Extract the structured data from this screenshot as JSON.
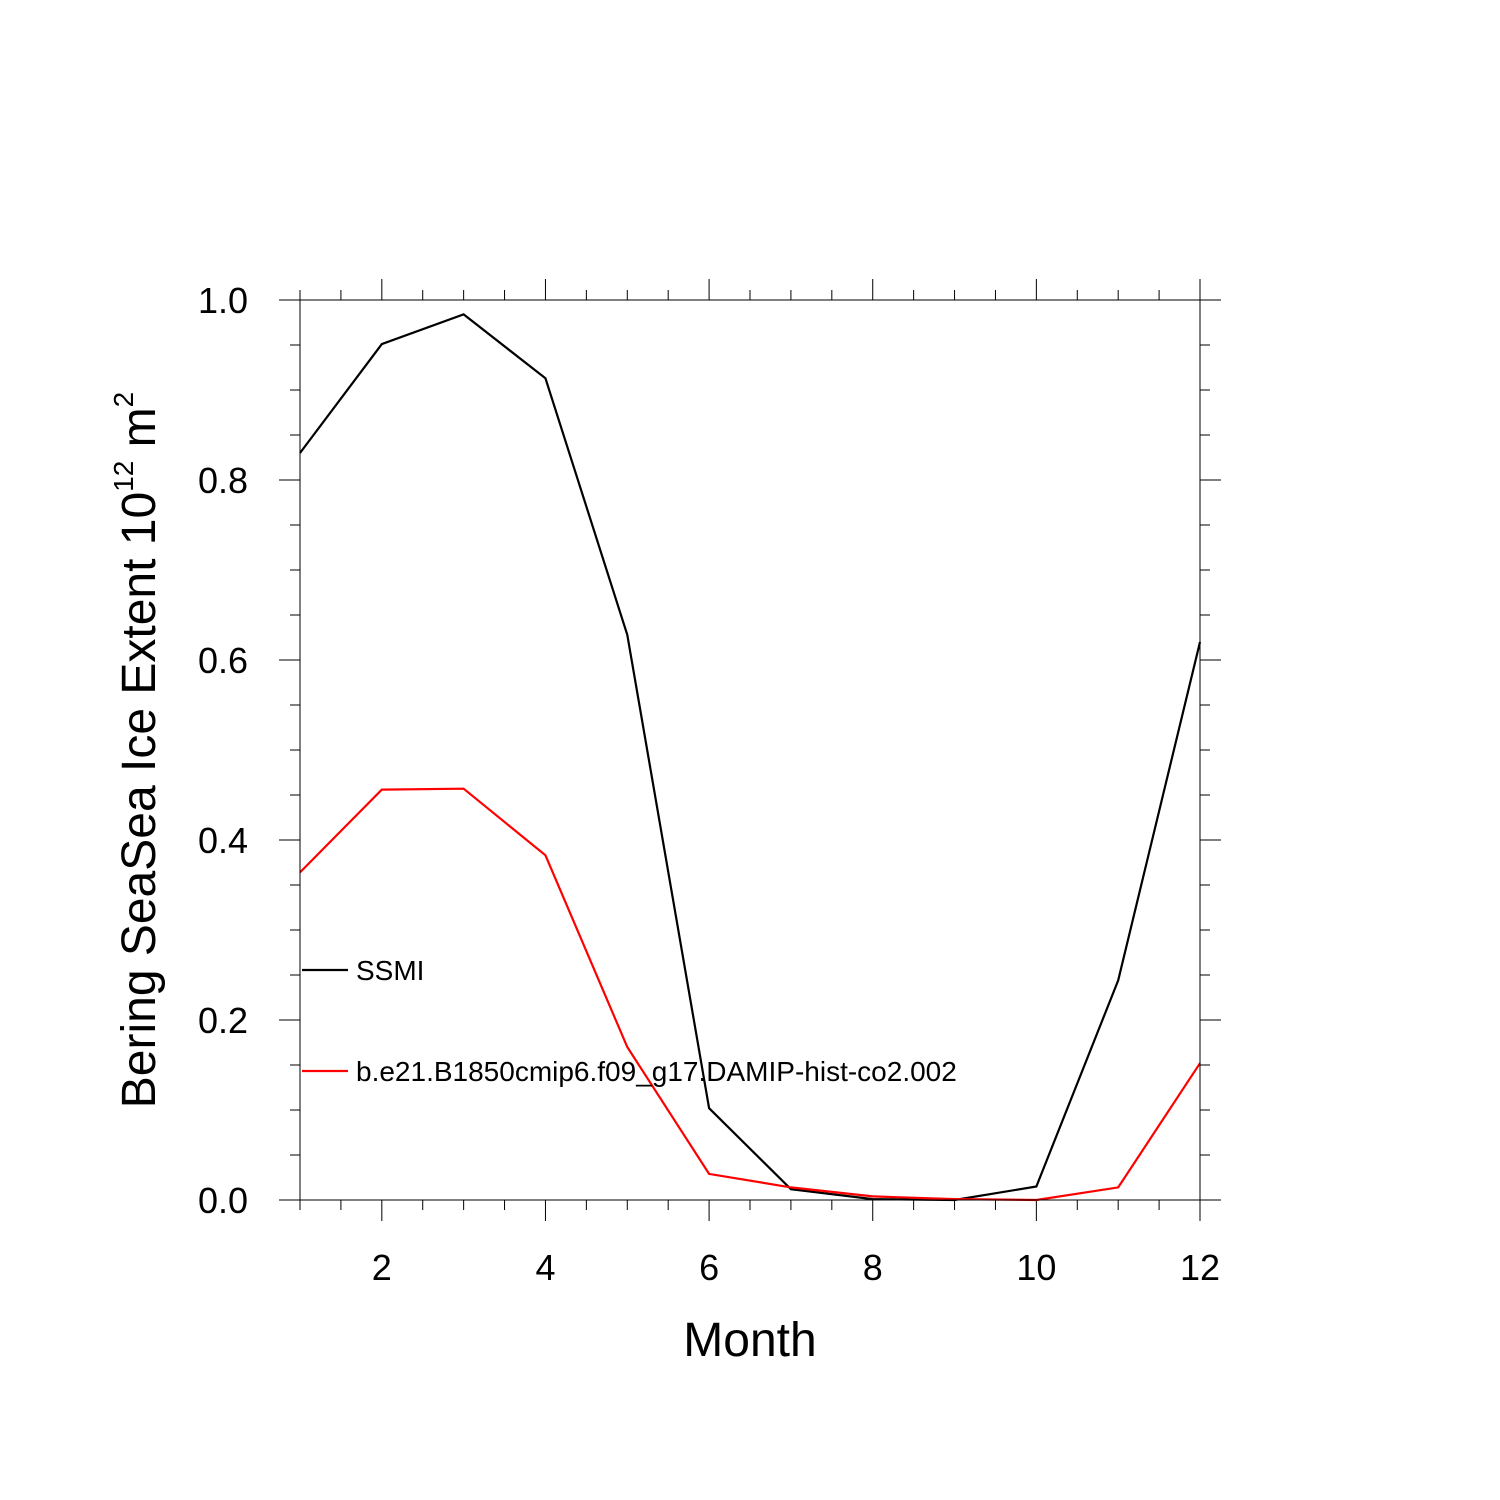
{
  "chart_data": {
    "type": "line",
    "title": "",
    "xlabel": "Month",
    "ylabel": {
      "text": "Bering SeaSea Ice Extent 10",
      "exponent": "12",
      "unit": "m",
      "unit_exponent": "2"
    },
    "xlim": [
      1,
      12
    ],
    "ylim": [
      0.0,
      1.0
    ],
    "x_ticks": [
      2,
      4,
      6,
      8,
      10,
      12
    ],
    "x_tick_labels": [
      "2",
      "4",
      "6",
      "8",
      "10",
      "12"
    ],
    "y_ticks": [
      0.0,
      0.2,
      0.4,
      0.6,
      0.8,
      1.0
    ],
    "y_tick_labels": [
      "0.0",
      "0.2",
      "0.4",
      "0.6",
      "0.8",
      "1.0"
    ],
    "grid": false,
    "legend_position": "left",
    "x": [
      1,
      2,
      3,
      4,
      5,
      6,
      7,
      8,
      9,
      10,
      11,
      12
    ],
    "series": [
      {
        "name": "SSMI",
        "color": "#000000",
        "values": [
          0.83,
          0.951,
          0.984,
          0.913,
          0.628,
          0.102,
          0.012,
          0.001,
          0.0,
          0.015,
          0.244,
          0.62
        ]
      },
      {
        "name": "b.e21.B1850cmip6.f09_g17.DAMIP-hist-co2.002",
        "color": "#ff0000",
        "values": [
          0.364,
          0.456,
          0.457,
          0.383,
          0.17,
          0.029,
          0.014,
          0.004,
          0.001,
          0.0,
          0.014,
          0.152
        ]
      }
    ]
  }
}
